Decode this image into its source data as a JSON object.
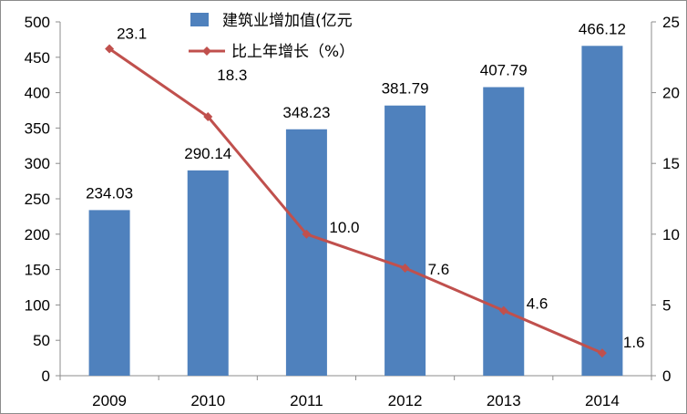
{
  "chart_data": {
    "type": "bar",
    "categories": [
      "2009",
      "2010",
      "2011",
      "2012",
      "2013",
      "2014"
    ],
    "series": [
      {
        "name": "建筑业增加值(亿元",
        "type": "bar",
        "axis": "left",
        "values": [
          234.03,
          290.14,
          348.23,
          381.79,
          407.79,
          466.12
        ],
        "labels": [
          "234.03",
          "290.14",
          "348.23",
          "381.79",
          "407.79",
          "466.12"
        ],
        "color": "#4F81BD"
      },
      {
        "name": "比上年增长（%）",
        "type": "line",
        "axis": "right",
        "values": [
          23.1,
          18.3,
          10.0,
          7.6,
          4.6,
          1.6
        ],
        "labels": [
          "23.1",
          "18.3",
          "10.0",
          "7.6",
          "4.6",
          "1.6"
        ],
        "color": "#C0504D"
      }
    ],
    "y_left": {
      "min": 0,
      "max": 500,
      "step": 50,
      "ticks": [
        "0",
        "50",
        "100",
        "150",
        "200",
        "250",
        "300",
        "350",
        "400",
        "450",
        "500"
      ]
    },
    "y_right": {
      "min": 0,
      "max": 25,
      "step": 5,
      "ticks": [
        "0",
        "5",
        "10",
        "15",
        "20",
        "25"
      ]
    },
    "legend_position": "top-center",
    "grid": false
  }
}
